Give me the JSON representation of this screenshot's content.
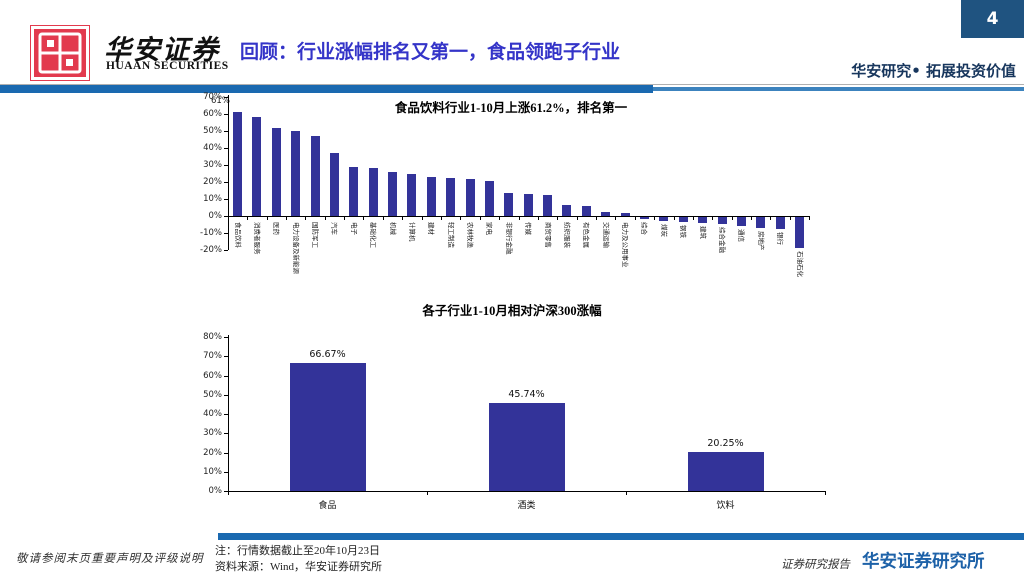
{
  "page": {
    "number": "4"
  },
  "header": {
    "brand_cn": "华安证券",
    "brand_en": "HUAAN SECURITIES",
    "title": "回顾：行业涨幅排名又第一，食品领跑子行业",
    "slogan": "华安研究• 拓展投资价值"
  },
  "colors": {
    "bar": "#333399",
    "band_blue": "#1a69b0",
    "title_blue": "#3434c8",
    "slogan_navy": "#17365d",
    "logo_red": "#e23a4e",
    "institute_blue": "#1e62a8",
    "page_box_blue": "#1f5380"
  },
  "chart_data": [
    {
      "type": "bar",
      "title": "食品饮料行业1-10月上涨61.2%，排名第一",
      "first_bar_annotation": "61%",
      "categories": [
        "食品饮料",
        "消费者服务",
        "医药",
        "电力设备及新能源",
        "国防军工",
        "汽车",
        "电子",
        "基础化工",
        "机械",
        "计算机",
        "建材",
        "轻工制造",
        "农林牧渔",
        "家电",
        "非银行金融",
        "传媒",
        "商贸零售",
        "纺织服装",
        "有色金属",
        "交通运输",
        "电力及公用事业",
        "综合",
        "煤炭",
        "钢铁",
        "建筑",
        "综合金融",
        "通信",
        "房地产",
        "银行",
        "石油石化"
      ],
      "values": [
        61.2,
        58,
        51.8,
        50,
        47,
        37,
        28.8,
        28.2,
        25.6,
        25,
        22.9,
        22.4,
        21.5,
        20.3,
        13.5,
        13.2,
        12.1,
        6.2,
        5.6,
        2.4,
        1.5,
        -1.0,
        -2.3,
        -3.0,
        -3.7,
        -4.4,
        -5.1,
        -6.2,
        -7.2,
        -18.3
      ],
      "ylim": [
        -20,
        70
      ],
      "ytick_step": 10,
      "grid": false,
      "legend": "none"
    },
    {
      "type": "bar",
      "title": "各子行业1-10月相对沪深300涨幅",
      "categories": [
        "食品",
        "酒类",
        "饮料"
      ],
      "values": [
        66.67,
        45.74,
        20.25
      ],
      "value_labels": [
        "66.67%",
        "45.74%",
        "20.25%"
      ],
      "ylim": [
        0,
        80
      ],
      "ytick_step": 10,
      "grid": false,
      "legend": "none"
    }
  ],
  "footer": {
    "disclaimer": "敬请参阅末页重要声明及评级说明",
    "note": "注：行情数据截止至20年10月23日",
    "source": "资料来源：Wind，华安证券研究所",
    "report_type": "证券研究报告",
    "institute": "华安证券研究所"
  }
}
